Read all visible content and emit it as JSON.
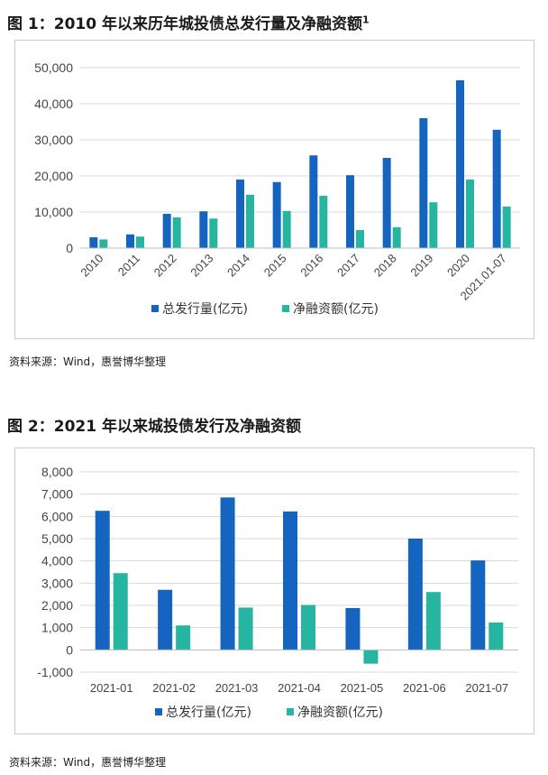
{
  "figure1": {
    "title_prefix": "图 1：2010 年以来历年城投债总发行量及净融资额",
    "title_sup": "1",
    "source": "资料来源：Wind，惠誉博华整理"
  },
  "figure2": {
    "title": "图 2：2021 年以来城投债发行及净融资额",
    "source": "资料来源：Wind，惠誉博华整理"
  },
  "colors": {
    "issuance": "#1565c0",
    "net": "#26b5a0",
    "grid": "#d9d9d9",
    "axis": "#666666"
  },
  "chart_data": [
    {
      "type": "bar",
      "categories": [
        "2010",
        "2011",
        "2012",
        "2013",
        "2014",
        "2015",
        "2016",
        "2017",
        "2018",
        "2019",
        "2020",
        "2021.01-07"
      ],
      "series": [
        {
          "name": "总发行量(亿元)",
          "values": [
            3000,
            3800,
            9500,
            10200,
            19000,
            18300,
            25700,
            20200,
            25000,
            36000,
            46500,
            32800
          ]
        },
        {
          "name": "净融资额(亿元)",
          "values": [
            2400,
            3200,
            8500,
            8200,
            14800,
            10300,
            14500,
            5000,
            5800,
            12700,
            19000,
            11500
          ]
        }
      ],
      "yticks": [
        "0",
        "10,000",
        "20,000",
        "30,000",
        "40,000",
        "50,000"
      ],
      "ylim": [
        0,
        50000
      ],
      "legend": "bottom",
      "grid": true,
      "xlabel_rotation": "rotated"
    },
    {
      "type": "bar",
      "categories": [
        "2021-01",
        "2021-02",
        "2021-03",
        "2021-04",
        "2021-05",
        "2021-06",
        "2021-07"
      ],
      "series": [
        {
          "name": "总发行量(亿元)",
          "values": [
            6250,
            2700,
            6850,
            6220,
            1880,
            5000,
            4020
          ]
        },
        {
          "name": "净融资额(亿元)",
          "values": [
            3450,
            1100,
            1900,
            2020,
            -620,
            2600,
            1230
          ]
        }
      ],
      "yticks": [
        "-1,000",
        "0",
        "1,000",
        "2,000",
        "3,000",
        "4,000",
        "5,000",
        "6,000",
        "7,000",
        "8,000"
      ],
      "ylim": [
        -1000,
        8000
      ],
      "legend": "bottom",
      "grid": true
    }
  ]
}
